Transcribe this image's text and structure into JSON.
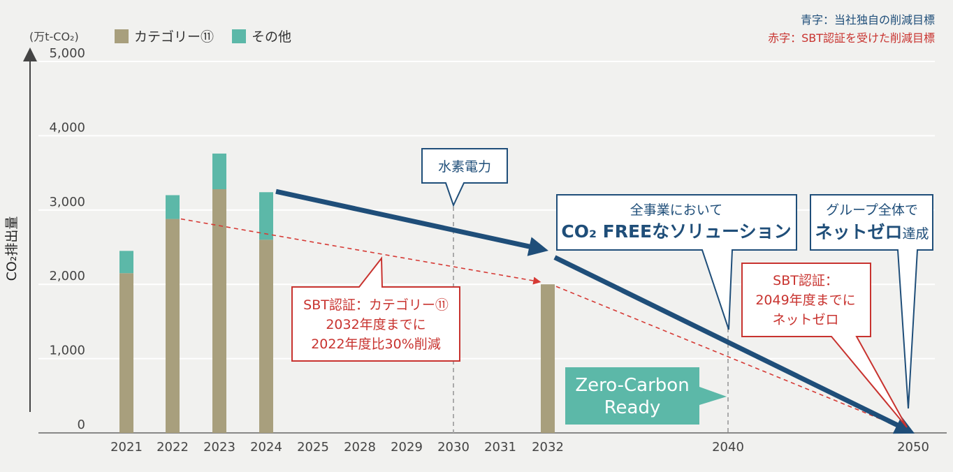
{
  "chart_data": {
    "type": "bar",
    "ylabel": "CO₂排出量",
    "unit": "(万t-CO₂)",
    "ylim": [
      0,
      5000
    ],
    "yticks": [
      "0",
      "1,000",
      "2,000",
      "3,000",
      "4,000",
      "5,000"
    ],
    "categories": [
      "2021",
      "2022",
      "2023",
      "2024",
      "2025",
      "2028",
      "2029",
      "2030",
      "2031",
      "2032",
      "2040",
      "2050"
    ],
    "series": [
      {
        "name": "カテゴリー⑪",
        "color": "#a89f7d",
        "values": [
          2150,
          2880,
          3280,
          2600,
          null,
          null,
          null,
          null,
          null,
          2000,
          null,
          null
        ]
      },
      {
        "name": "その他",
        "color": "#5cb8a8",
        "values": [
          300,
          320,
          480,
          640,
          null,
          null,
          null,
          null,
          null,
          0,
          null,
          null
        ]
      }
    ],
    "legend_placement": "top-left",
    "grid": true,
    "notes": {
      "blue_note": "青字：当社独自の削減目標",
      "red_note": "赤字：SBT認証を受けた削減目標"
    },
    "callouts": {
      "hydrogen": "水素電力",
      "co2free_line1": "全事業において",
      "co2free_line2": "CO₂ FREEなソリューション",
      "netzero_line1": "グループ全体で",
      "netzero_line2_bold": "ネットゼロ",
      "netzero_line2_tail": "達成",
      "sbt_cat_line1": "SBT認証：カテゴリー⑪",
      "sbt_cat_line2": "2032年度までに",
      "sbt_cat_line3": "2022年度比30%削減",
      "sbt2049_line1": "SBT認証：",
      "sbt2049_line2": "2049年度までに",
      "sbt2049_line3": "ネットゼロ",
      "zero_carbon_line1": "Zero-Carbon",
      "zero_carbon_line2": "Ready"
    },
    "blue_path": [
      [
        "2024",
        3250
      ],
      [
        "2032",
        2400
      ],
      [
        "2050",
        0
      ]
    ],
    "red_path": [
      [
        "2022",
        2880
      ],
      [
        "2032",
        2000
      ],
      [
        "2050",
        0
      ]
    ]
  }
}
